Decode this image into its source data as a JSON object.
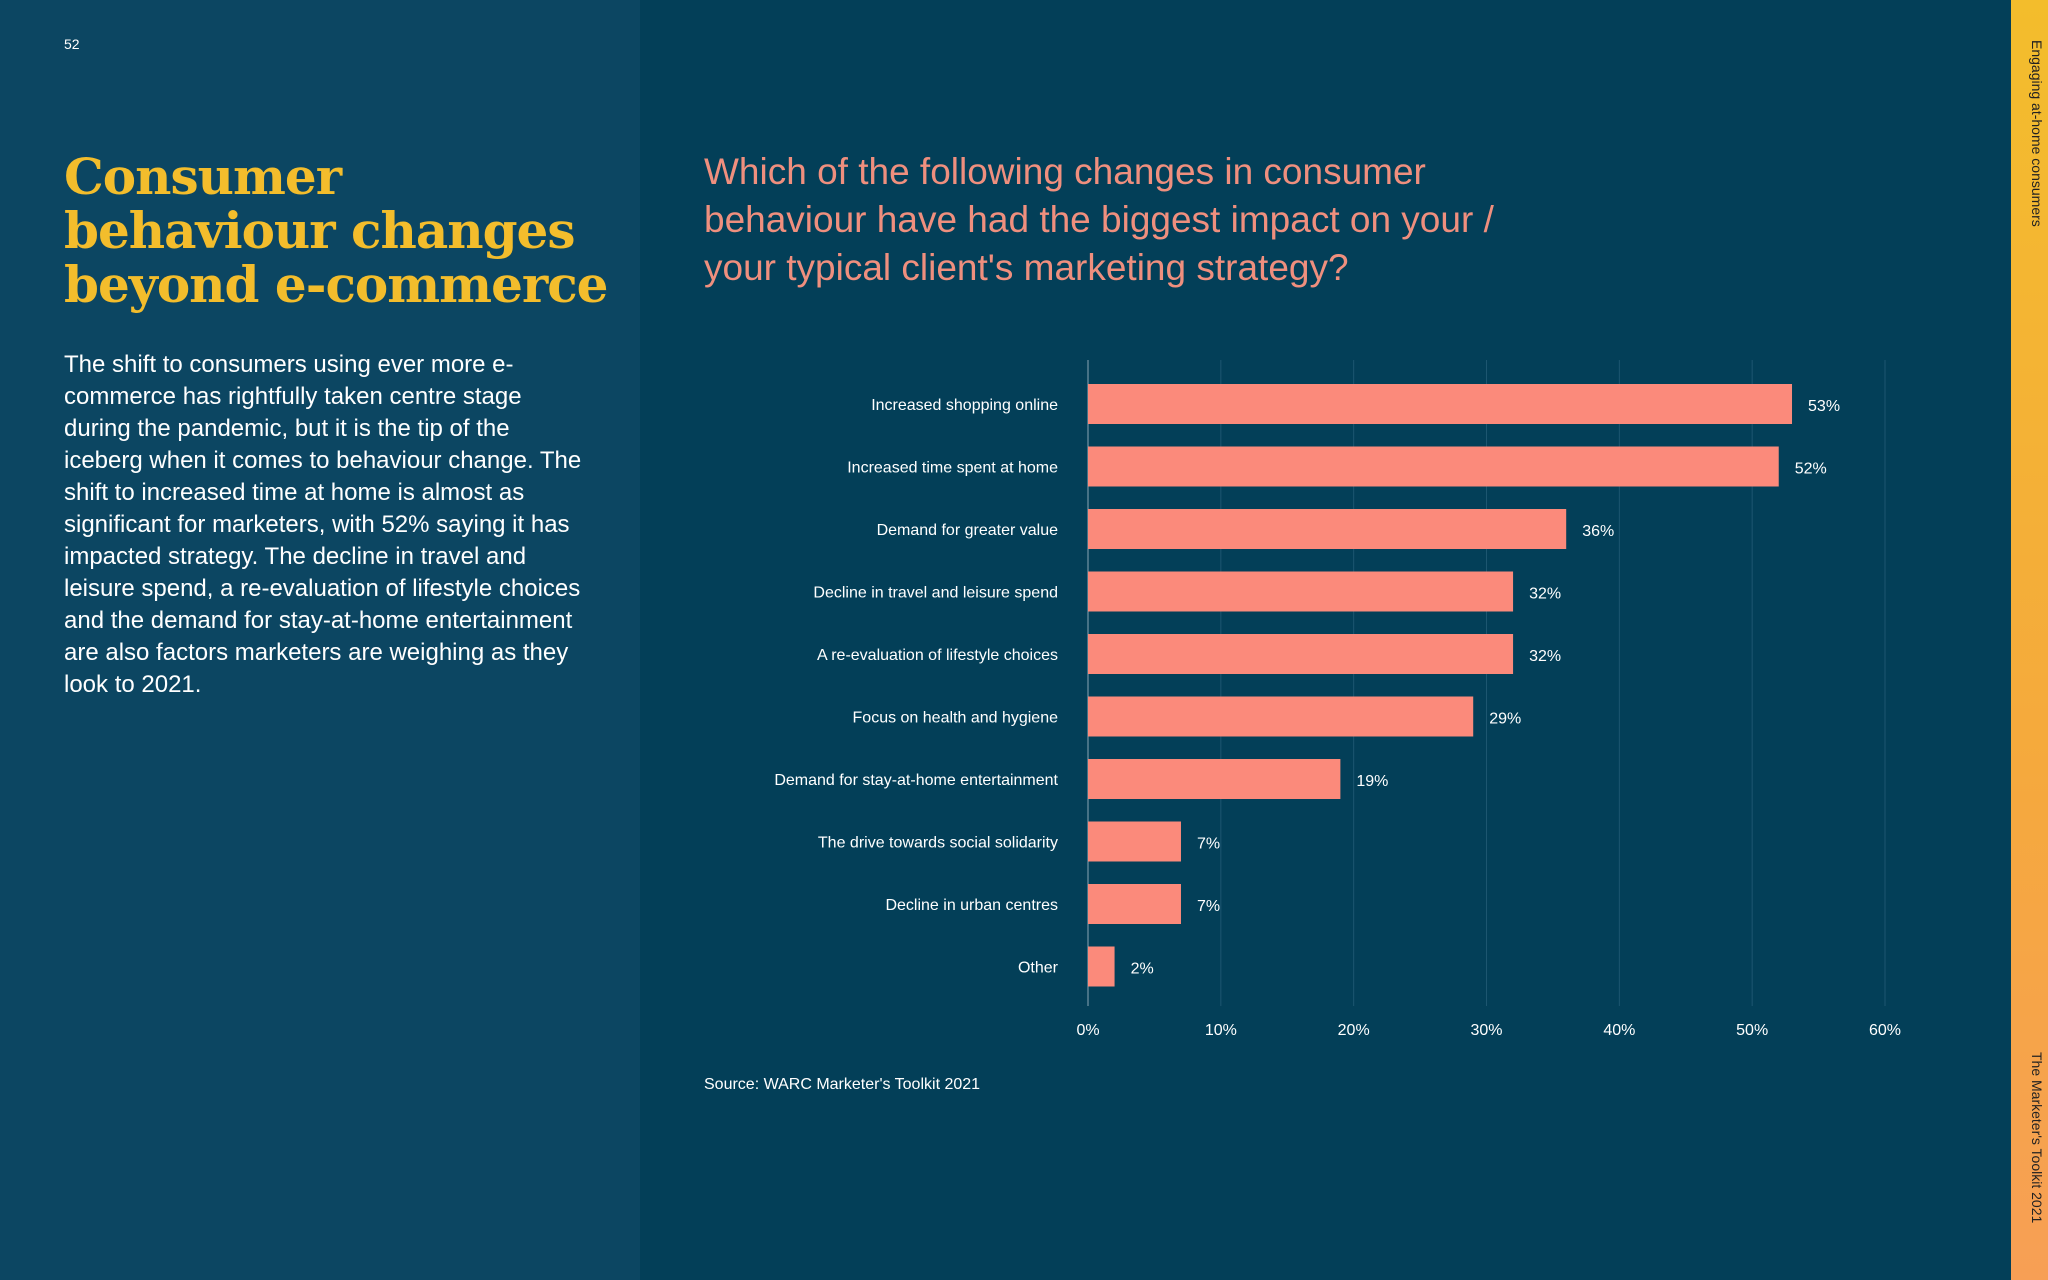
{
  "page": {
    "number": "52",
    "title": "Consumer behaviour changes beyond e-commerce",
    "body": "The shift to consumers using ever more e-commerce has rightfully taken centre stage during the pandemic, but it is the tip of the iceberg when it comes to behaviour change. The shift to increased time at home is almost as significant for marketers, with 52% saying it has impacted strategy. The decline in travel and leisure spend, a re-evaluation of lifestyle choices and the demand for stay-at-home entertainment are also factors marketers are weighing as they look to 2021.",
    "source": "Source: WARC Marketer's Toolkit 2021",
    "side_top": "Engaging at-home consumers",
    "side_bottom": "The Marketer's Toolkit 2021"
  },
  "colors": {
    "background": "#033f58",
    "panel": "#0c4662",
    "title": "#f3bd2c",
    "bar": "#fb8a7b",
    "question": "#ef8f7e"
  },
  "chart_data": {
    "type": "bar",
    "orientation": "horizontal",
    "title": "Which of the following changes in consumer behaviour have had the biggest impact on your / your typical client's marketing strategy?",
    "categories": [
      "Increased shopping online",
      "Increased time spent at home",
      "Demand for greater value",
      "Decline in travel and leisure spend",
      "A re-evaluation of lifestyle choices",
      "Focus on health and hygiene",
      "Demand for stay-at-home entertainment",
      "The drive towards social solidarity",
      "Decline in urban centres",
      "Other"
    ],
    "values": [
      53,
      52,
      36,
      32,
      32,
      29,
      19,
      7,
      7,
      2
    ],
    "value_labels": [
      "53%",
      "52%",
      "36%",
      "32%",
      "32%",
      "29%",
      "19%",
      "7%",
      "7%",
      "2%"
    ],
    "xlim": [
      0,
      60
    ],
    "xticks": [
      0,
      10,
      20,
      30,
      40,
      50,
      60
    ],
    "xtick_labels": [
      "0%",
      "10%",
      "20%",
      "30%",
      "40%",
      "50%",
      "60%"
    ],
    "grid": true,
    "legend": "none",
    "xlabel": "",
    "ylabel": ""
  }
}
